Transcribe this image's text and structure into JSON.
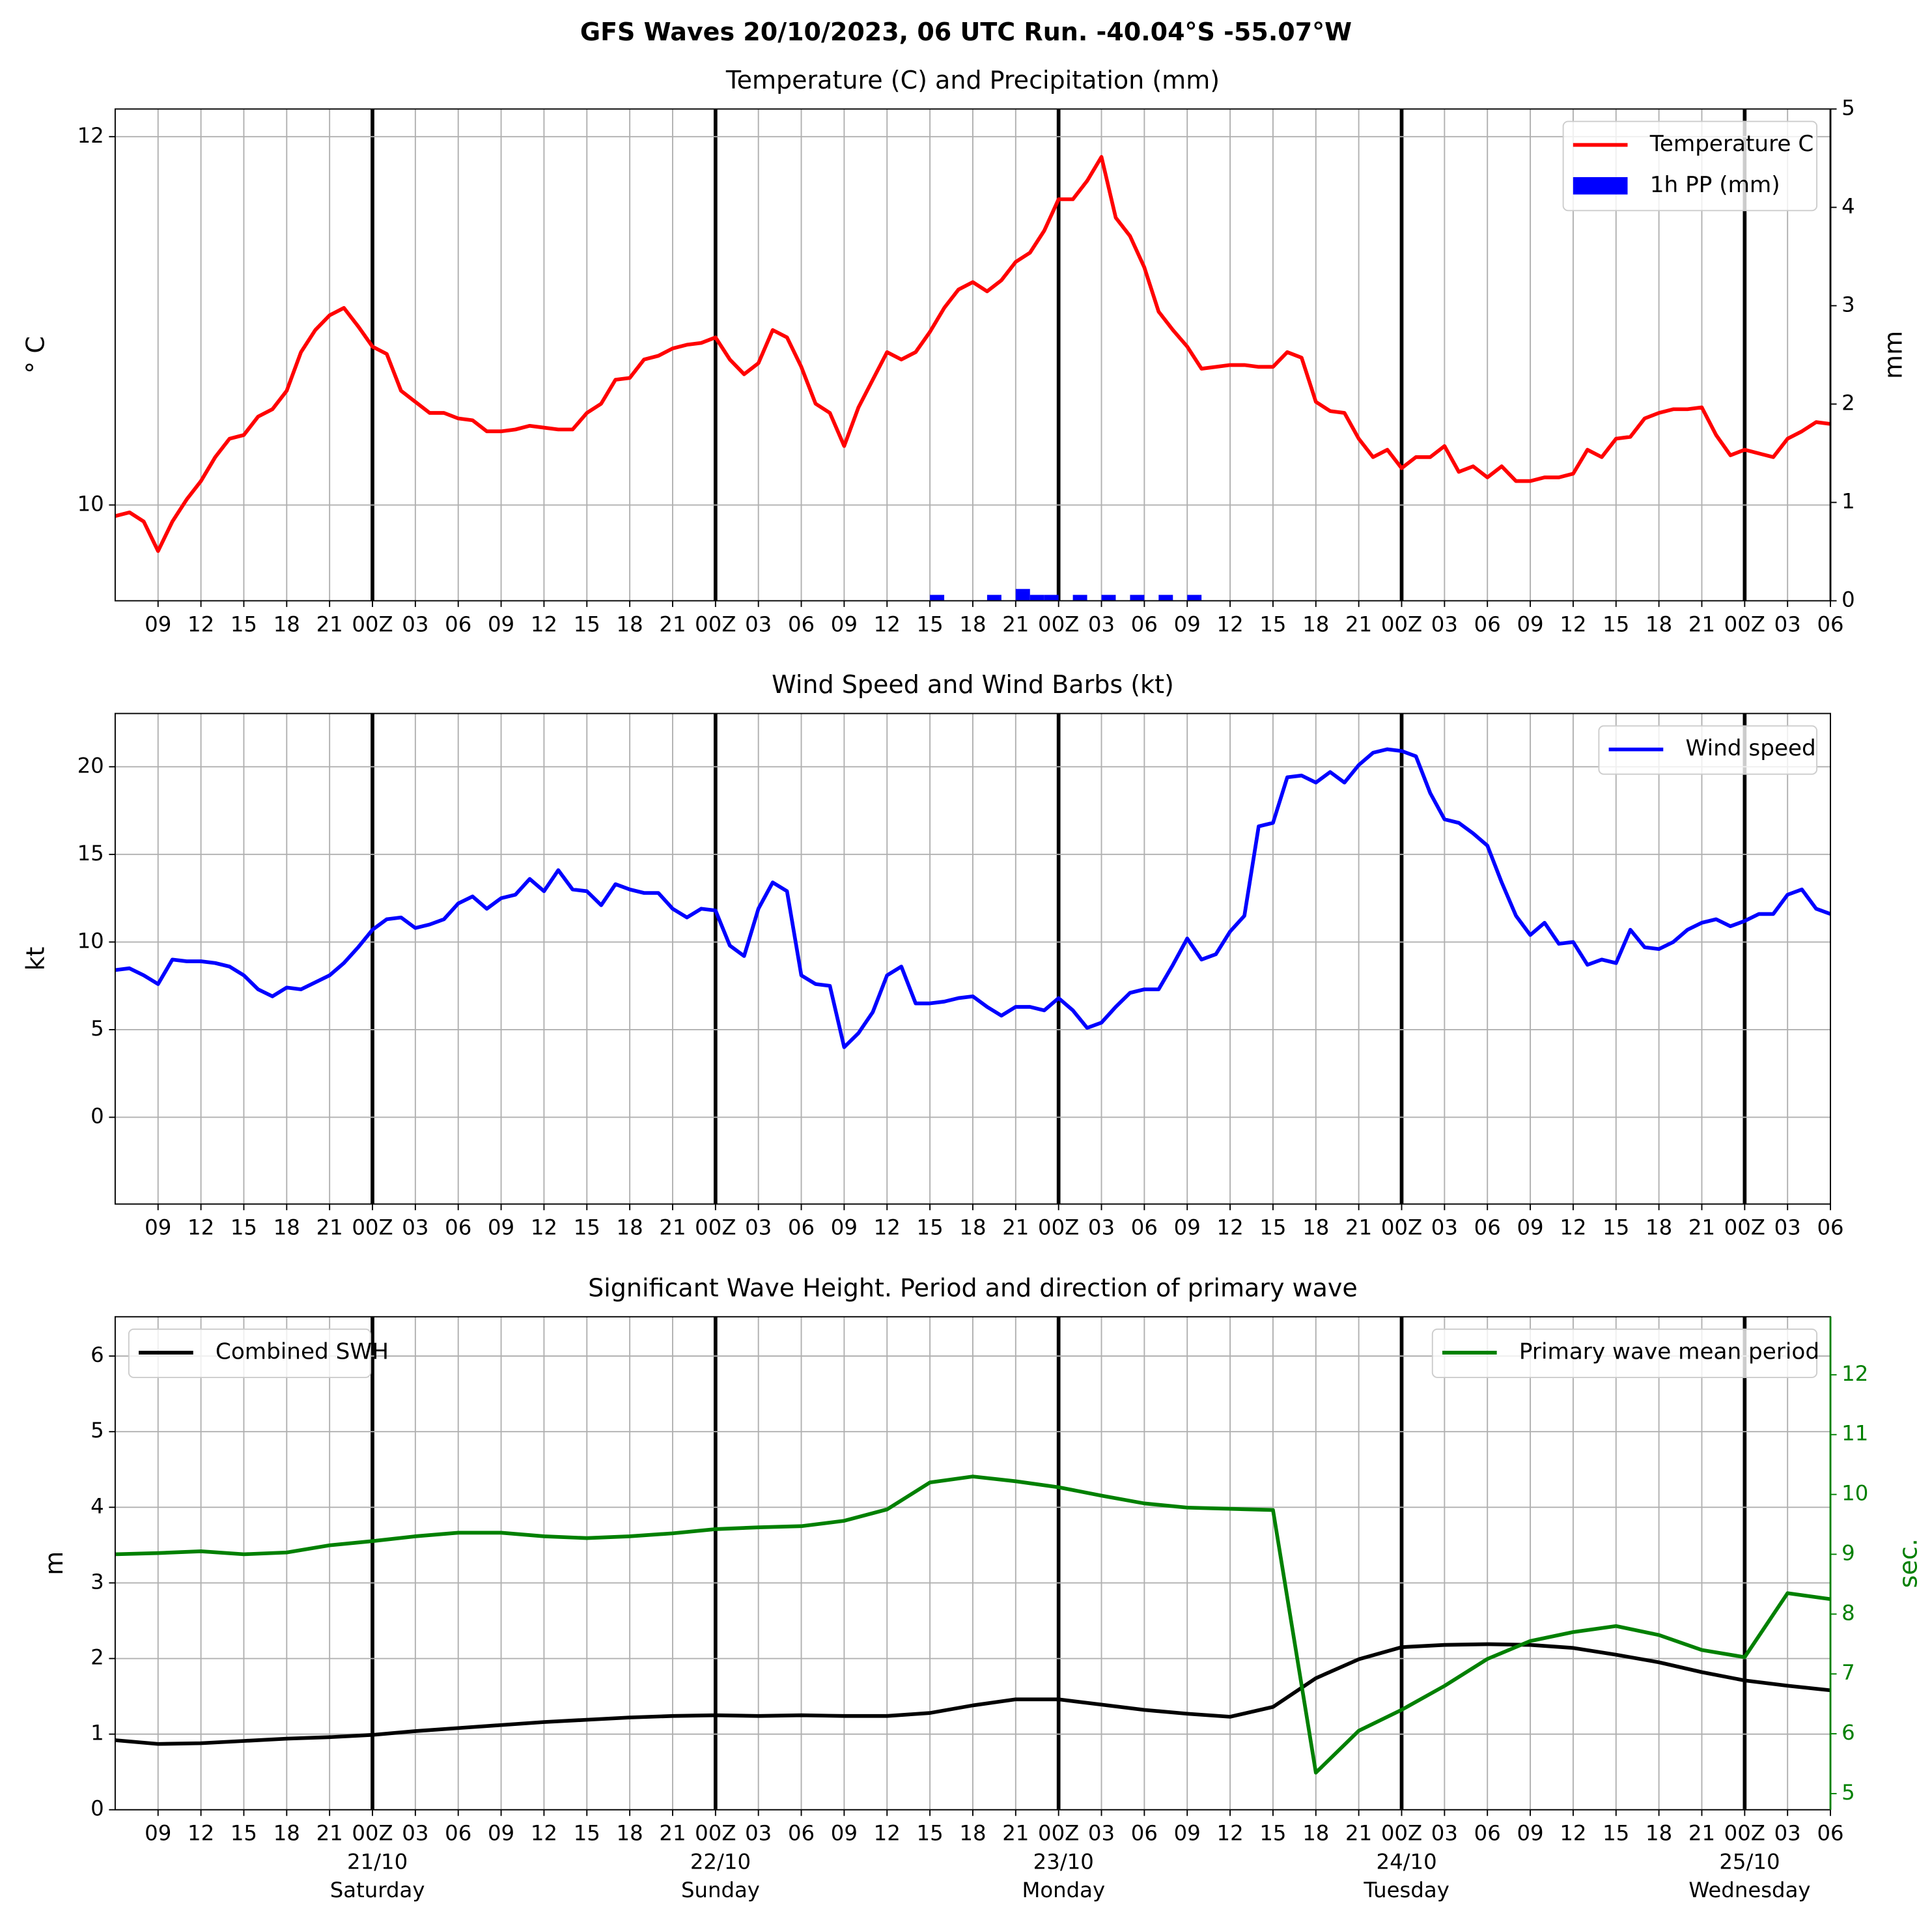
{
  "title": "GFS Waves 20/10/2023, 06 UTC Run. -40.04°S -55.07°W",
  "xlim": [
    0,
    120
  ],
  "xticks": [
    {
      "value": 3,
      "label": "09"
    },
    {
      "value": 6,
      "label": "12"
    },
    {
      "value": 9,
      "label": "15"
    },
    {
      "value": 12,
      "label": "18"
    },
    {
      "value": 15,
      "label": "21"
    },
    {
      "value": 18,
      "label": "00Z"
    },
    {
      "value": 21,
      "label": "03"
    },
    {
      "value": 24,
      "label": "06"
    },
    {
      "value": 27,
      "label": "09"
    },
    {
      "value": 30,
      "label": "12"
    },
    {
      "value": 33,
      "label": "15"
    },
    {
      "value": 36,
      "label": "18"
    },
    {
      "value": 39,
      "label": "21"
    },
    {
      "value": 42,
      "label": "00Z"
    },
    {
      "value": 45,
      "label": "03"
    },
    {
      "value": 48,
      "label": "06"
    },
    {
      "value": 51,
      "label": "09"
    },
    {
      "value": 54,
      "label": "12"
    },
    {
      "value": 57,
      "label": "15"
    },
    {
      "value": 60,
      "label": "18"
    },
    {
      "value": 63,
      "label": "21"
    },
    {
      "value": 66,
      "label": "00Z"
    },
    {
      "value": 69,
      "label": "03"
    },
    {
      "value": 72,
      "label": "06"
    },
    {
      "value": 75,
      "label": "09"
    },
    {
      "value": 78,
      "label": "12"
    },
    {
      "value": 81,
      "label": "15"
    },
    {
      "value": 84,
      "label": "18"
    },
    {
      "value": 87,
      "label": "21"
    },
    {
      "value": 90,
      "label": "00Z"
    },
    {
      "value": 93,
      "label": "03"
    },
    {
      "value": 96,
      "label": "06"
    },
    {
      "value": 99,
      "label": "09"
    },
    {
      "value": 102,
      "label": "12"
    },
    {
      "value": 105,
      "label": "15"
    },
    {
      "value": 108,
      "label": "18"
    },
    {
      "value": 111,
      "label": "21"
    },
    {
      "value": 114,
      "label": "00Z"
    },
    {
      "value": 117,
      "label": "03"
    },
    {
      "value": 120,
      "label": "06"
    }
  ],
  "days": [
    {
      "value": 18,
      "date": "21/10",
      "day": "Saturday"
    },
    {
      "value": 42,
      "date": "22/10",
      "day": "Sunday"
    },
    {
      "value": 66,
      "date": "23/10",
      "day": "Monday"
    },
    {
      "value": 90,
      "date": "24/10",
      "day": "Tuesday"
    },
    {
      "value": 114,
      "date": "25/10",
      "day": "Wednesday"
    }
  ],
  "chart_data": [
    {
      "type": "line",
      "title": "Temperature (C) and Precipitation (mm)",
      "ylabel": "° C",
      "y2label": "mm",
      "ylim": [
        9.48,
        12.15
      ],
      "yticks": [
        10,
        12
      ],
      "y2lim": [
        0,
        5
      ],
      "y2ticks": [
        0,
        1,
        2,
        3,
        4,
        5
      ],
      "grid": true,
      "legend": "upper right",
      "x": [
        0,
        1,
        2,
        3,
        4,
        5,
        6,
        7,
        8,
        9,
        10,
        11,
        12,
        13,
        14,
        15,
        16,
        17,
        18,
        19,
        20,
        21,
        22,
        23,
        24,
        25,
        26,
        27,
        28,
        29,
        30,
        31,
        32,
        33,
        34,
        35,
        36,
        37,
        38,
        39,
        40,
        41,
        42,
        43,
        44,
        45,
        46,
        47,
        48,
        49,
        50,
        51,
        52,
        53,
        54,
        55,
        56,
        57,
        58,
        59,
        60,
        61,
        62,
        63,
        64,
        65,
        66,
        67,
        68,
        69,
        70,
        71,
        72,
        73,
        74,
        75,
        76,
        77,
        78,
        79,
        80,
        81,
        82,
        83,
        84,
        85,
        86,
        87,
        88,
        89,
        90,
        91,
        92,
        93,
        94,
        95,
        96,
        97,
        98,
        99,
        100,
        101,
        102,
        103,
        104,
        105,
        106,
        107,
        108,
        109,
        110,
        111,
        112,
        113,
        114,
        115,
        116,
        117,
        118,
        119,
        120
      ],
      "series": [
        {
          "name": "Temperature C",
          "color": "#ff0000",
          "values": [
            9.94,
            9.96,
            9.91,
            9.75,
            9.91,
            10.03,
            10.13,
            10.26,
            10.36,
            10.38,
            10.48,
            10.52,
            10.62,
            10.83,
            10.95,
            11.03,
            11.07,
            10.97,
            10.86,
            10.82,
            10.62,
            10.56,
            10.5,
            10.5,
            10.47,
            10.46,
            10.4,
            10.4,
            10.41,
            10.43,
            10.42,
            10.41,
            10.41,
            10.5,
            10.55,
            10.68,
            10.69,
            10.79,
            10.81,
            10.85,
            10.87,
            10.88,
            10.91,
            10.79,
            10.71,
            10.77,
            10.95,
            10.91,
            10.75,
            10.55,
            10.5,
            10.32,
            10.53,
            10.68,
            10.83,
            10.79,
            10.83,
            10.94,
            11.07,
            11.17,
            11.21,
            11.16,
            11.22,
            11.32,
            11.37,
            11.49,
            11.66,
            11.66,
            11.76,
            11.89,
            11.56,
            11.46,
            11.29,
            11.05,
            10.95,
            10.86,
            10.74,
            10.75,
            10.76,
            10.76,
            10.75,
            10.75,
            10.83,
            10.8,
            10.56,
            10.51,
            10.5,
            10.36,
            10.26,
            10.3,
            10.2,
            10.26,
            10.26,
            10.32,
            10.18,
            10.21,
            10.15,
            10.21,
            10.13,
            10.13,
            10.15,
            10.15,
            10.17,
            10.3,
            10.26,
            10.36,
            10.37,
            10.47,
            10.5,
            10.52,
            10.52,
            10.53,
            10.38,
            10.27,
            10.3,
            10.28,
            10.26,
            10.36,
            10.4,
            10.45,
            10.44
          ]
        },
        {
          "name": "1h PP (mm)",
          "type": "bar",
          "axis": "y2",
          "color": "#0000ff",
          "x": [
            57.5,
            61.5,
            63.5,
            64.5,
            65.5,
            67.5,
            69.5,
            71.5,
            73.5,
            75.5
          ],
          "values": [
            0.06,
            0.06,
            0.12,
            0.06,
            0.06,
            0.06,
            0.06,
            0.06,
            0.06,
            0.06
          ]
        }
      ]
    },
    {
      "type": "line",
      "title": "Wind Speed and Wind Barbs (kt)",
      "ylabel": "kt",
      "ylim": [
        -4.95,
        23.04
      ],
      "yticks": [
        0,
        5,
        10,
        15,
        20
      ],
      "grid": true,
      "legend": "upper right",
      "x": [
        0,
        1,
        2,
        3,
        4,
        5,
        6,
        7,
        8,
        9,
        10,
        11,
        12,
        13,
        14,
        15,
        16,
        17,
        18,
        19,
        20,
        21,
        22,
        23,
        24,
        25,
        26,
        27,
        28,
        29,
        30,
        31,
        32,
        33,
        34,
        35,
        36,
        37,
        38,
        39,
        40,
        41,
        42,
        43,
        44,
        45,
        46,
        47,
        48,
        49,
        50,
        51,
        52,
        53,
        54,
        55,
        56,
        57,
        58,
        59,
        60,
        61,
        62,
        63,
        64,
        65,
        66,
        67,
        68,
        69,
        70,
        71,
        72,
        73,
        74,
        75,
        76,
        77,
        78,
        79,
        80,
        81,
        82,
        83,
        84,
        85,
        86,
        87,
        88,
        89,
        90,
        91,
        92,
        93,
        94,
        95,
        96,
        97,
        98,
        99,
        100,
        101,
        102,
        103,
        104,
        105,
        106,
        107,
        108,
        109,
        110,
        111,
        112,
        113,
        114,
        115,
        116,
        117,
        118,
        119,
        120
      ],
      "series": [
        {
          "name": "Wind speed",
          "color": "#0000ff",
          "values": [
            8.4,
            8.5,
            8.1,
            7.6,
            9.0,
            8.9,
            8.9,
            8.8,
            8.6,
            8.1,
            7.3,
            6.9,
            7.4,
            7.3,
            7.7,
            8.1,
            8.8,
            9.7,
            10.7,
            11.3,
            11.4,
            10.8,
            11.0,
            11.3,
            12.2,
            12.6,
            11.9,
            12.5,
            12.7,
            13.6,
            12.9,
            14.1,
            13.0,
            12.9,
            12.1,
            13.3,
            13.0,
            12.8,
            12.8,
            11.9,
            11.4,
            11.9,
            11.8,
            9.8,
            9.2,
            11.9,
            13.4,
            12.9,
            8.1,
            7.6,
            7.5,
            4.0,
            4.8,
            6.0,
            8.1,
            8.6,
            6.5,
            6.5,
            6.6,
            6.8,
            6.9,
            6.3,
            5.8,
            6.3,
            6.3,
            6.1,
            6.8,
            6.1,
            5.1,
            5.4,
            6.3,
            7.1,
            7.3,
            7.3,
            8.7,
            10.2,
            9.0,
            9.3,
            10.6,
            11.5,
            16.6,
            16.8,
            19.4,
            19.5,
            19.1,
            19.7,
            19.1,
            20.1,
            20.8,
            21.0,
            20.9,
            20.6,
            18.5,
            17.0,
            16.8,
            16.2,
            15.5,
            13.4,
            11.5,
            10.4,
            11.1,
            9.9,
            10.0,
            8.7,
            9.0,
            8.8,
            10.7,
            9.7,
            9.6,
            10.0,
            10.7,
            11.1,
            11.3,
            10.9,
            11.2,
            11.6,
            11.6,
            12.7,
            13.0,
            11.9,
            11.6
          ]
        }
      ]
    },
    {
      "type": "line",
      "title": "Significant Wave Height. Period and direction of primary wave",
      "ylabel": "m",
      "y2label": "sec.",
      "y2color": "#008000",
      "ylim": [
        0,
        6.52
      ],
      "yticks": [
        0,
        1,
        2,
        3,
        4,
        5,
        6
      ],
      "y2lim": [
        4.73,
        12.97
      ],
      "y2ticks": [
        5,
        6,
        7,
        8,
        9,
        10,
        11,
        12
      ],
      "grid": true,
      "x": [
        0,
        3,
        6,
        9,
        12,
        15,
        18,
        21,
        24,
        27,
        30,
        33,
        36,
        39,
        42,
        45,
        48,
        51,
        54,
        57,
        60,
        63,
        66,
        69,
        72,
        75,
        78,
        81,
        84,
        87,
        90,
        93,
        96,
        99,
        102,
        105,
        108,
        111,
        114,
        117,
        120
      ],
      "series": [
        {
          "name": "Combined SWH",
          "color": "#000000",
          "legend": "upper left",
          "values": [
            0.92,
            0.87,
            0.88,
            0.91,
            0.94,
            0.96,
            0.99,
            1.04,
            1.08,
            1.12,
            1.16,
            1.19,
            1.22,
            1.24,
            1.25,
            1.24,
            1.25,
            1.24,
            1.24,
            1.28,
            1.38,
            1.46,
            1.46,
            1.39,
            1.32,
            1.27,
            1.23,
            1.36,
            1.74,
            1.99,
            2.15,
            2.18,
            2.19,
            2.18,
            2.14,
            2.05,
            1.95,
            1.82,
            1.71,
            1.64,
            1.58
          ]
        },
        {
          "name": "Primary wave mean period",
          "color": "#008000",
          "axis": "y2",
          "legend": "upper right",
          "values": [
            9.0,
            9.02,
            9.05,
            9.0,
            9.03,
            9.15,
            9.22,
            9.3,
            9.36,
            9.36,
            9.3,
            9.27,
            9.3,
            9.35,
            9.42,
            9.45,
            9.47,
            9.56,
            9.75,
            10.2,
            10.3,
            10.22,
            10.12,
            9.98,
            9.85,
            9.78,
            9.76,
            9.74,
            5.35,
            6.05,
            6.4,
            6.8,
            7.25,
            7.55,
            7.7,
            7.8,
            7.65,
            7.4,
            7.28,
            8.35,
            8.25
          ]
        }
      ]
    }
  ]
}
